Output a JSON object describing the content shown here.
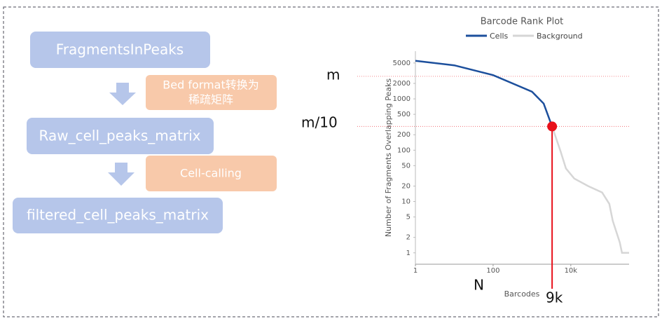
{
  "flow": {
    "boxes": [
      "FragmentsInPeaks",
      "Raw_cell_peaks_matrix",
      "filtered_cell_peaks_matrix"
    ],
    "steps": [
      [
        "Bed format转换为",
        "稀疏矩阵"
      ],
      [
        "Cell-calling"
      ]
    ]
  },
  "chart_data": {
    "type": "line",
    "title": "Barcode Rank Plot",
    "x_label": "Barcodes",
    "y_label": "Number of Fragments Overlapping Peaks",
    "log_x": true,
    "log_y": true,
    "xlim": [
      1,
      316000
    ],
    "ylim": [
      0.6,
      8500
    ],
    "xticks": [
      1,
      100,
      {
        "value": 10000,
        "label": "10k"
      }
    ],
    "yticks": [
      1,
      2,
      5,
      10,
      20,
      50,
      100,
      200,
      500,
      1000,
      2000,
      5000
    ],
    "legend": "top",
    "series": [
      {
        "name": "Cells",
        "color": "#1c4f9c",
        "x": [
          1,
          10,
          100,
          1000,
          2000,
          3300
        ],
        "values": [
          5500,
          4500,
          2900,
          1380,
          810,
          290
        ]
      },
      {
        "name": "Background",
        "color": "#d6d6d6",
        "x": [
          3300,
          5400,
          7500,
          12300,
          28000,
          64000,
          98000,
          120000,
          148000,
          182000,
          208000,
          316000
        ],
        "values": [
          290,
          97,
          44,
          28,
          20,
          15,
          9,
          4.2,
          2.6,
          1.6,
          1,
          1
        ]
      }
    ],
    "threshold": {
      "x": 3300,
      "y": 290,
      "m": 2750,
      "color": "#e8101a"
    },
    "annotations": {
      "m": "m",
      "m10": "m/10",
      "n": "N",
      "cut": "9k"
    }
  }
}
